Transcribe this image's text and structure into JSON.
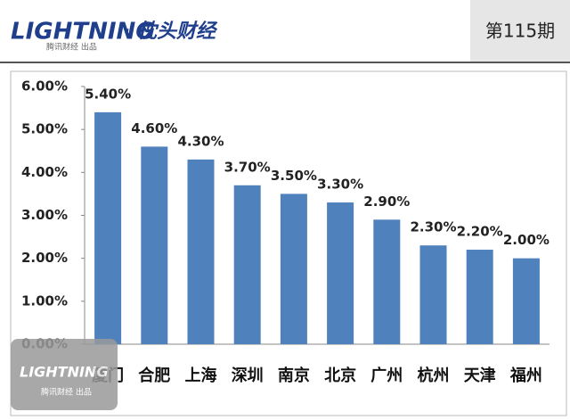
{
  "header": {
    "logo": "LIGHTNING",
    "brand": "· 枕头财经",
    "publisher": "腾讯财经 出品",
    "issue": "第115期"
  },
  "chart_data": {
    "type": "bar",
    "categories": [
      "厦门",
      "合肥",
      "上海",
      "深圳",
      "南京",
      "北京",
      "广州",
      "杭州",
      "天津",
      "福州"
    ],
    "values": [
      5.4,
      4.6,
      4.3,
      3.7,
      3.5,
      3.3,
      2.9,
      2.3,
      2.2,
      2.0
    ],
    "value_labels": [
      "5.40%",
      "4.60%",
      "4.30%",
      "3.70%",
      "3.50%",
      "3.30%",
      "2.90%",
      "2.30%",
      "2.20%",
      "2.00%"
    ],
    "color": "#4f81bd",
    "ylim": [
      0,
      6
    ],
    "yticks": [
      {
        "value": 0,
        "label": "0.00%"
      },
      {
        "value": 1,
        "label": "1.00%"
      },
      {
        "value": 2,
        "label": "2.00%"
      },
      {
        "value": 3,
        "label": "3.00%"
      },
      {
        "value": 4,
        "label": "4.00%"
      },
      {
        "value": 5,
        "label": "5.00%"
      },
      {
        "value": 6,
        "label": "6.00%"
      }
    ],
    "grid": false
  }
}
